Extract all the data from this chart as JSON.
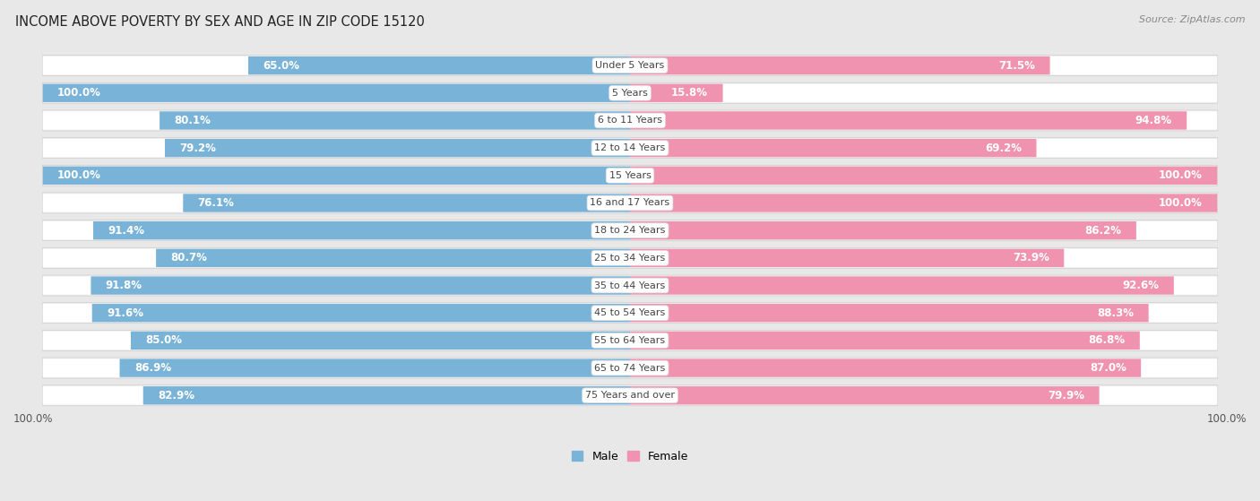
{
  "title": "INCOME ABOVE POVERTY BY SEX AND AGE IN ZIP CODE 15120",
  "source": "Source: ZipAtlas.com",
  "categories": [
    "Under 5 Years",
    "5 Years",
    "6 to 11 Years",
    "12 to 14 Years",
    "15 Years",
    "16 and 17 Years",
    "18 to 24 Years",
    "25 to 34 Years",
    "35 to 44 Years",
    "45 to 54 Years",
    "55 to 64 Years",
    "65 to 74 Years",
    "75 Years and over"
  ],
  "male_values": [
    65.0,
    100.0,
    80.1,
    79.2,
    100.0,
    76.1,
    91.4,
    80.7,
    91.8,
    91.6,
    85.0,
    86.9,
    82.9
  ],
  "female_values": [
    71.5,
    15.8,
    94.8,
    69.2,
    100.0,
    100.0,
    86.2,
    73.9,
    92.6,
    88.3,
    86.8,
    87.0,
    79.9
  ],
  "male_color": "#7ab3d8",
  "female_color": "#f093b0",
  "male_label": "Male",
  "female_label": "Female",
  "bg_color": "#e8e8e8",
  "bar_bg_color": "#f0f0f0",
  "bar_white_color": "#ffffff",
  "title_fontsize": 10.5,
  "source_fontsize": 8,
  "label_fontsize": 8.5,
  "category_fontsize": 8,
  "xlim": 100
}
